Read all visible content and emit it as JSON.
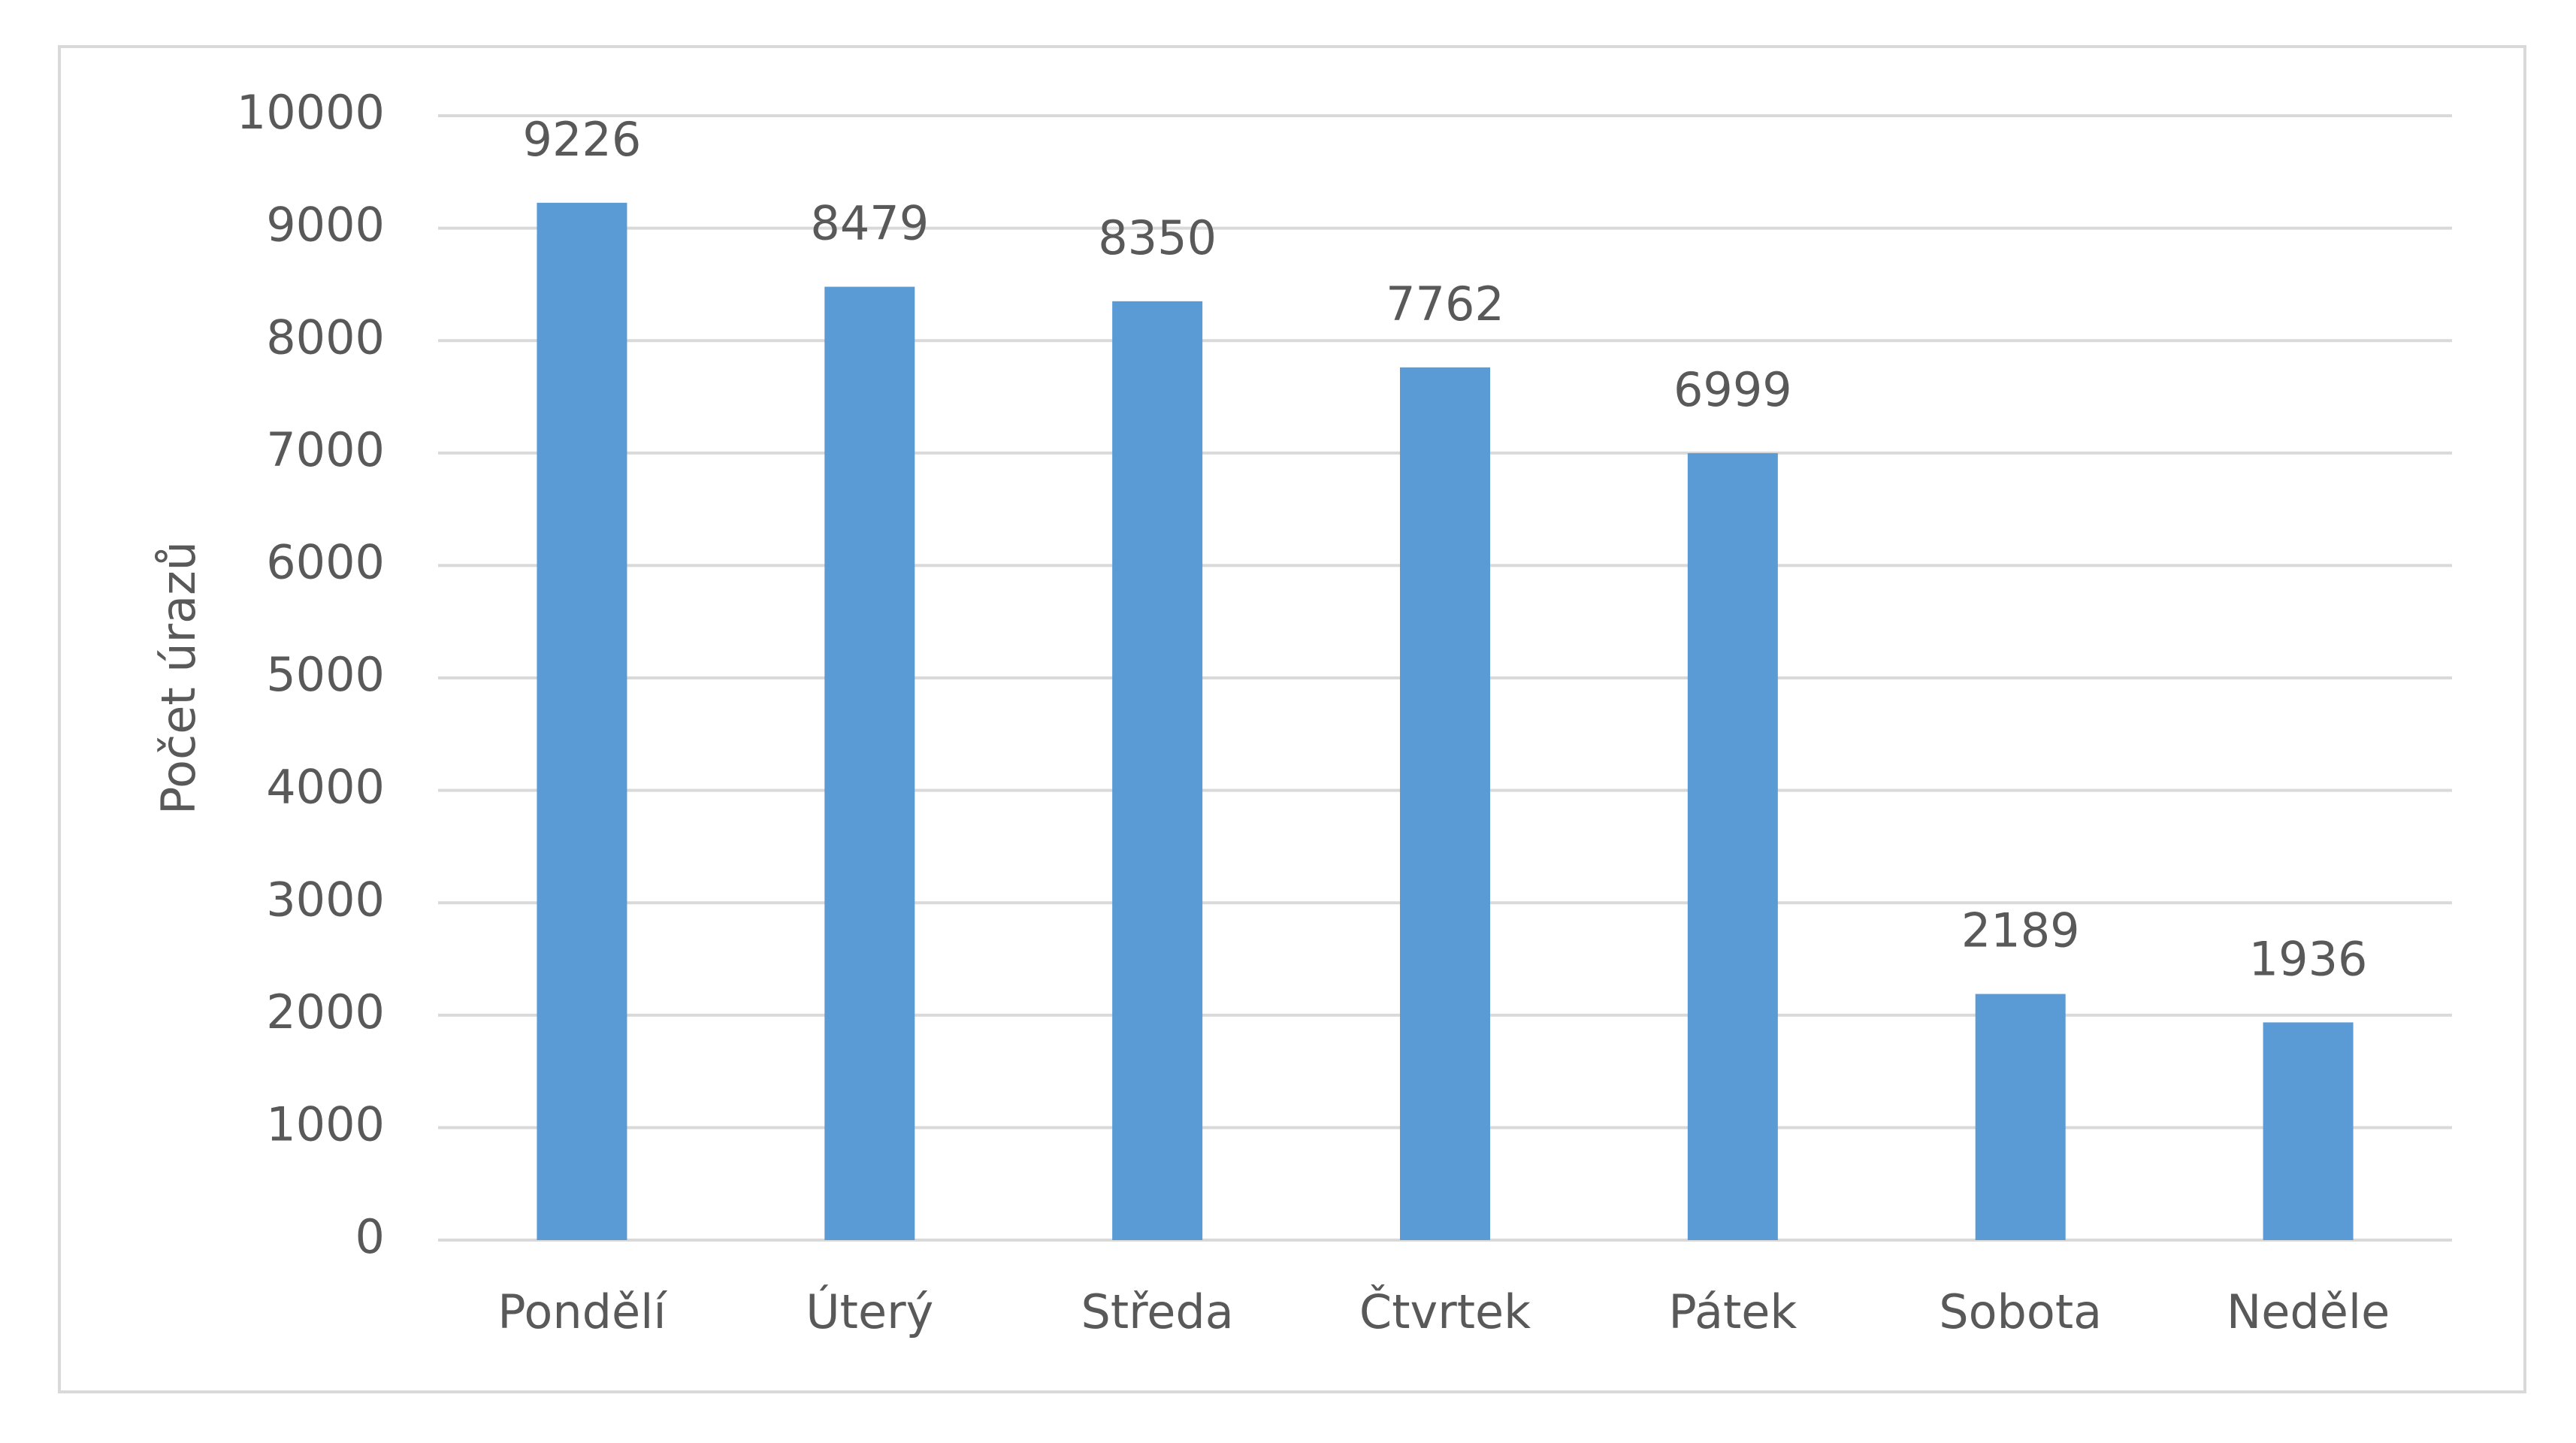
{
  "chart_data": {
    "type": "bar",
    "y_label": "Počet úrazů",
    "categories": [
      "Pondělí",
      "Úterý",
      "Středa",
      "Čtvrtek",
      "Pátek",
      "Sobota",
      "Neděle"
    ],
    "values": [
      9226,
      8479,
      8350,
      7762,
      6999,
      2189,
      1936
    ],
    "color": "#5b9bd5",
    "ylim": [
      0,
      10000
    ],
    "yticks": [
      0,
      1000,
      2000,
      3000,
      4000,
      5000,
      6000,
      7000,
      8000,
      9000,
      10000
    ],
    "grid": true
  }
}
